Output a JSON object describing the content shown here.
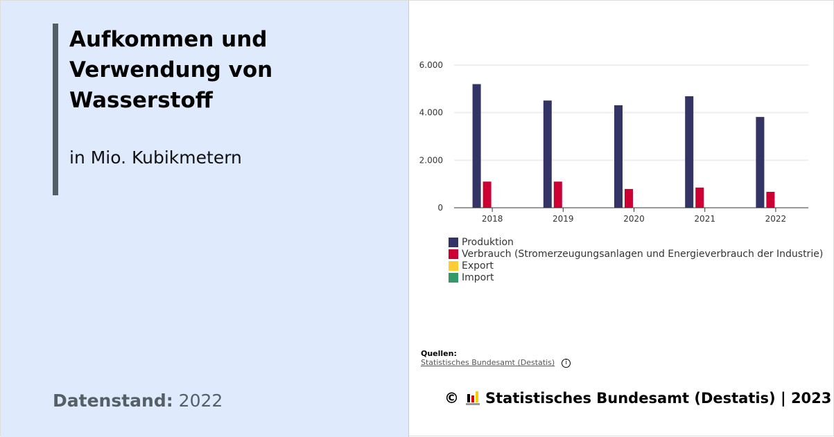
{
  "header": {
    "title": "Aufkommen und Verwendung von Wasserstoff",
    "subtitle": "in Mio. Kubikmetern",
    "datenstand_label": "Datenstand:",
    "datenstand_value": "2022"
  },
  "chart_data": {
    "type": "bar",
    "categories": [
      "2018",
      "2019",
      "2020",
      "2021",
      "2022"
    ],
    "ylim": [
      0,
      6000
    ],
    "yticks": [
      0,
      2000,
      4000,
      6000
    ],
    "ytick_labels": [
      "0",
      "2.000",
      "4.000",
      "6.000"
    ],
    "grid": true,
    "legend_position": "bottom",
    "series": [
      {
        "name": "Produktion",
        "color": "#333366",
        "values": [
          5200,
          4510,
          4310,
          4690,
          3820
        ]
      },
      {
        "name": "Verbrauch (Stromerzeugungsanlagen und Energieverbrauch der Industrie)",
        "color": "#cc0033",
        "values": [
          1100,
          1100,
          790,
          850,
          670
        ]
      },
      {
        "name": "Export",
        "color": "#ffcc33",
        "values": [
          0,
          0,
          0,
          0,
          0
        ]
      },
      {
        "name": "Import",
        "color": "#339966",
        "values": [
          0,
          0,
          0,
          0,
          0
        ]
      }
    ]
  },
  "sources": {
    "heading": "Quellen:",
    "link": "Statistisches Bundesamt (Destatis)",
    "info_icon": "i"
  },
  "footer": {
    "copyright": "©",
    "text": "Statistisches Bundesamt (Destatis) | 2023"
  }
}
